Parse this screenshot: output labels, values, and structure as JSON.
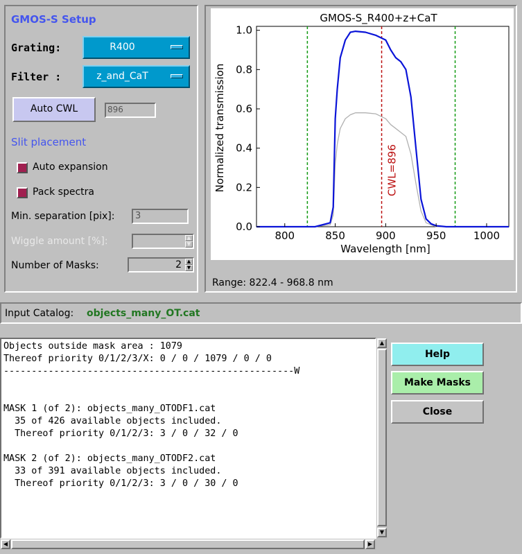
{
  "setup": {
    "title": "GMOS-S Setup",
    "grating_label": "Grating:",
    "grating_value": "R400",
    "filter_label": "Filter :",
    "filter_value": "z_and_CaT",
    "auto_cwl_label": "Auto CWL",
    "cwl_value": "896",
    "slit_title": "Slit placement",
    "auto_expansion_label": "Auto expansion",
    "pack_spectra_label": "Pack spectra",
    "min_sep_label": "Min. separation [pix]:",
    "min_sep_value": "3",
    "wiggle_label": "Wiggle amount [%]:",
    "wiggle_value": "",
    "num_masks_label": "Number of Masks:",
    "num_masks_value": "2"
  },
  "plot": {
    "range_text": "Range: 822.4 - 968.8 nm"
  },
  "chart_data": {
    "type": "line",
    "title": "GMOS-S_R400+z+CaT",
    "xlabel": "Wavelength [nm]",
    "ylabel": "Normalized transmission",
    "xlim": [
      772,
      1022
    ],
    "ylim": [
      0,
      1.02
    ],
    "x_ticks": [
      "800",
      "850",
      "900",
      "950",
      "1000"
    ],
    "y_ticks": [
      "0.0",
      "0.2",
      "0.4",
      "0.6",
      "0.8",
      "1.0"
    ],
    "series": [
      {
        "color": "#0a14d8",
        "x": [
          772,
          800,
          830,
          845,
          848,
          850,
          852,
          855,
          860,
          865,
          870,
          880,
          890,
          900,
          905,
          910,
          915,
          920,
          925,
          930,
          935,
          940,
          945,
          950,
          960,
          980,
          1000,
          1022
        ],
        "y": [
          0.0,
          0.0,
          0.0,
          0.02,
          0.1,
          0.55,
          0.7,
          0.86,
          0.95,
          0.99,
          0.995,
          0.99,
          0.975,
          0.95,
          0.9,
          0.86,
          0.84,
          0.8,
          0.66,
          0.4,
          0.14,
          0.04,
          0.015,
          0.005,
          0.0,
          0.0,
          0.0,
          0.0
        ]
      },
      {
        "color": "#b0b0b0",
        "x": [
          772,
          800,
          830,
          845,
          848,
          850,
          852,
          855,
          860,
          865,
          870,
          880,
          890,
          900,
          905,
          910,
          915,
          920,
          925,
          930,
          935,
          940,
          945,
          950,
          960,
          980,
          1000,
          1022
        ],
        "y": [
          0.0,
          0.0,
          0.0,
          0.01,
          0.06,
          0.32,
          0.42,
          0.5,
          0.55,
          0.57,
          0.58,
          0.58,
          0.575,
          0.55,
          0.52,
          0.5,
          0.48,
          0.46,
          0.37,
          0.22,
          0.08,
          0.02,
          0.01,
          0.0,
          0.0,
          0.0,
          0.0,
          0.0
        ]
      }
    ],
    "vlines": [
      {
        "x": 822.4,
        "color": "#119911"
      },
      {
        "x": 896,
        "color": "#bb1111",
        "label": "CWL=896"
      },
      {
        "x": 968.8,
        "color": "#119911"
      }
    ]
  },
  "catalog": {
    "label": "Input Catalog:",
    "value": "objects_many_OT.cat"
  },
  "output": {
    "text": "Objects outside mask area : 1079\nThereof priority 0/1/2/3/X: 0 / 0 / 1079 / 0 / 0\n----------------------------------------------------W\n\n\nMASK 1 (of 2): objects_many_OTODF1.cat\n  35 of 426 available objects included.\n  Thereof priority 0/1/2/3: 3 / 0 / 32 / 0\n\nMASK 2 (of 2): objects_many_OTODF2.cat\n  33 of 391 available objects included.\n  Thereof priority 0/1/2/3: 3 / 0 / 30 / 0"
  },
  "buttons": {
    "help": "Help",
    "make_masks": "Make Masks",
    "close": "Close"
  }
}
